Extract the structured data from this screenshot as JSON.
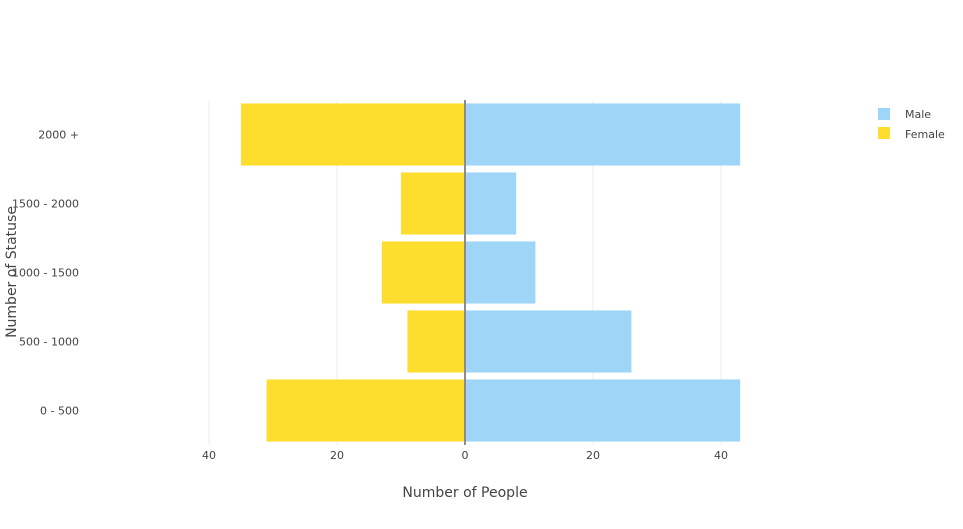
{
  "chart_data": {
    "type": "bar",
    "orientation": "horizontal",
    "layout": "population-pyramid",
    "title": "",
    "xlabel": "Number of People",
    "ylabel": "Number of Statuse",
    "categories": [
      "0 - 500",
      "500 - 1000",
      "1000 - 1500",
      "1500 - 2000",
      "2000 +"
    ],
    "series": [
      {
        "name": "Male",
        "color": "#9fd6f8",
        "values": [
          43,
          26,
          11,
          8,
          43
        ]
      },
      {
        "name": "Female",
        "color": "#fdde2f",
        "values": [
          31,
          9,
          13,
          10,
          35
        ]
      }
    ],
    "xlim": [
      -40,
      43
    ],
    "x_ticks": [
      -40,
      -20,
      0,
      20,
      40
    ],
    "x_tick_labels": [
      "40",
      "20",
      "0",
      "20",
      "40"
    ],
    "grid": true,
    "legend_position": "top-right"
  }
}
